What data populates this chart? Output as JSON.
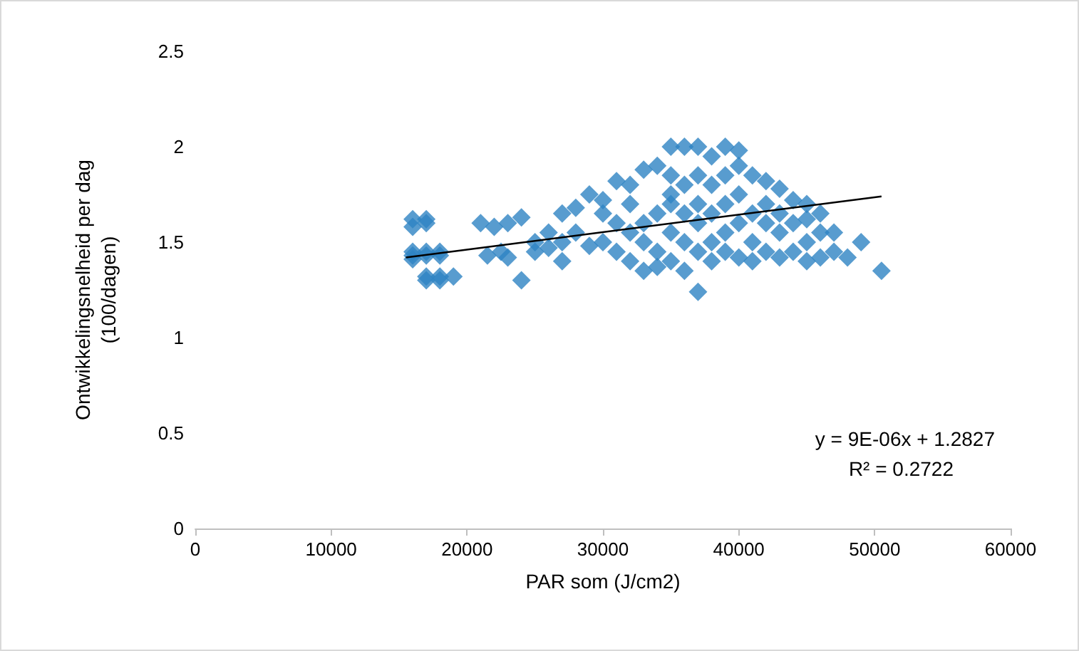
{
  "chart_data": {
    "type": "scatter",
    "xlabel": "PAR som (J/cm2)",
    "ylabel": "Ontwikkelingsnelheid per dag\n(100/dagen)",
    "xlim": [
      0,
      60000
    ],
    "xticks": [
      0,
      10000,
      20000,
      30000,
      40000,
      50000,
      60000
    ],
    "ylim": [
      0,
      2.5
    ],
    "yticks": [
      0,
      0.5,
      1,
      1.5,
      2,
      2.5
    ],
    "grid": false,
    "marker": "diamond",
    "annotations": [
      "y = 9E-06x + 1.2827",
      "R² = 0.2722"
    ],
    "series": [
      {
        "color": "#2e83c3",
        "x": [
          16000,
          16000,
          16000,
          16000,
          16000,
          17000,
          17000,
          17000,
          17000,
          17000,
          17000,
          18000,
          18000,
          18000,
          18000,
          19000,
          21000,
          22000,
          23000,
          21500,
          22500,
          23000,
          24000,
          24000,
          25000,
          25000,
          26000,
          26000,
          27000,
          27000,
          27000,
          28000,
          28000,
          29000,
          29000,
          30000,
          30000,
          30000,
          31000,
          31000,
          31000,
          32000,
          32000,
          32000,
          32000,
          33000,
          33000,
          33000,
          33000,
          34000,
          34000,
          34000,
          34000,
          35000,
          35000,
          35000,
          35000,
          35000,
          35000,
          36000,
          36000,
          36000,
          36000,
          36000,
          37000,
          37000,
          37000,
          37000,
          37000,
          37000,
          38000,
          38000,
          38000,
          38000,
          38000,
          39000,
          39000,
          39000,
          39000,
          39000,
          40000,
          40000,
          40000,
          40000,
          40000,
          41000,
          41000,
          41000,
          41000,
          42000,
          42000,
          42000,
          42000,
          43000,
          43000,
          43000,
          43000,
          44000,
          44000,
          44000,
          45000,
          45000,
          45000,
          45000,
          46000,
          46000,
          46000,
          47000,
          47000,
          48000,
          49000,
          50500
        ],
        "values": [
          1.58,
          1.62,
          1.43,
          1.45,
          1.41,
          1.6,
          1.62,
          1.43,
          1.45,
          1.3,
          1.32,
          1.43,
          1.45,
          1.32,
          1.3,
          1.32,
          1.6,
          1.58,
          1.6,
          1.43,
          1.45,
          1.42,
          1.63,
          1.3,
          1.45,
          1.5,
          1.55,
          1.47,
          1.65,
          1.4,
          1.5,
          1.68,
          1.55,
          1.75,
          1.48,
          1.72,
          1.5,
          1.65,
          1.82,
          1.45,
          1.6,
          1.8,
          1.4,
          1.55,
          1.7,
          1.88,
          1.35,
          1.6,
          1.5,
          1.9,
          1.37,
          1.65,
          1.45,
          1.85,
          2.0,
          1.4,
          1.55,
          1.7,
          1.75,
          2.0,
          1.8,
          1.35,
          1.5,
          1.65,
          2.0,
          1.85,
          1.24,
          1.45,
          1.6,
          1.7,
          1.95,
          1.8,
          1.5,
          1.65,
          1.4,
          2.0,
          1.85,
          1.45,
          1.55,
          1.7,
          1.9,
          1.98,
          1.75,
          1.42,
          1.6,
          1.85,
          1.5,
          1.65,
          1.4,
          1.82,
          1.45,
          1.6,
          1.7,
          1.78,
          1.42,
          1.55,
          1.65,
          1.72,
          1.45,
          1.6,
          1.7,
          1.4,
          1.5,
          1.62,
          1.65,
          1.42,
          1.55,
          1.55,
          1.45,
          1.42,
          1.5,
          1.35
        ]
      },
      {
        "type": "line",
        "color": "#000000",
        "marker": "none",
        "x": [
          15500,
          50500
        ],
        "values": [
          1.42,
          1.74
        ]
      }
    ]
  }
}
